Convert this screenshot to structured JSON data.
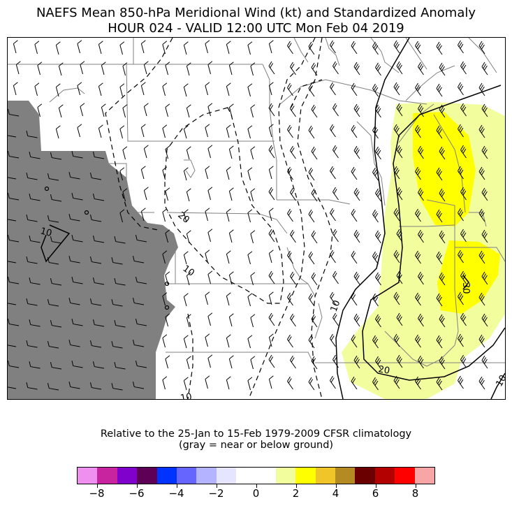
{
  "title": {
    "line1": "NAEFS Mean 850-hPa Meridional Wind (kt) and Standardized Anomaly",
    "line2": "HOUR 024 - VALID 12:00 UTC Mon Feb 04 2019"
  },
  "map": {
    "contour_labels": [
      "10",
      "20",
      "10",
      "10",
      "10",
      "20",
      "30",
      "10"
    ],
    "colors": {
      "terrain": "#808080",
      "anomaly_light_yellow": "#f2fe9d",
      "anomaly_yellow": "#ffff00",
      "borders": "#808080",
      "contours": "#000000"
    }
  },
  "footer": {
    "line1": "Relative to the 25-Jan to 15-Feb 1979-2009 CFSR climatology",
    "line2": "(gray = near or below ground)"
  },
  "colorbar": {
    "colors": [
      "#ef8ff0",
      "#c8249f",
      "#8000cc",
      "#5d0056",
      "#0033ff",
      "#6666ff",
      "#b3b3ff",
      "#e5e5ff",
      "#ffffff",
      "#ffffff",
      "#f2fe9d",
      "#ffff00",
      "#efc52a",
      "#b48b23",
      "#6b0000",
      "#b30000",
      "#ff0000",
      "#f7a5a5"
    ],
    "tick_labels": [
      "−8",
      "−6",
      "−4",
      "−2",
      "0",
      "2",
      "4",
      "6",
      "8"
    ]
  }
}
